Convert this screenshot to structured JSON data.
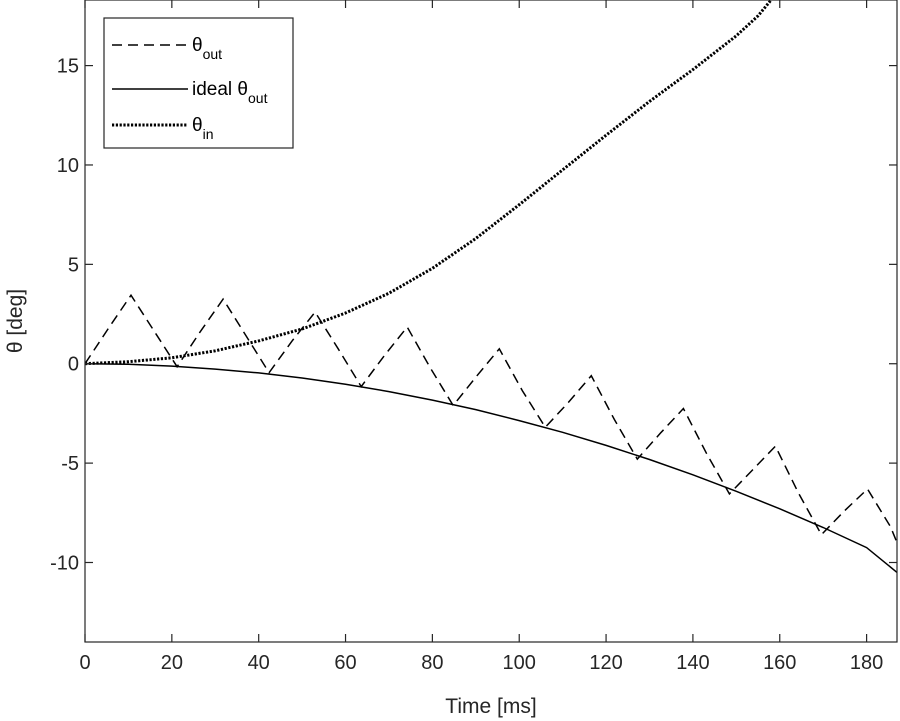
{
  "chart_data": {
    "type": "line",
    "xlabel": "Time [ms]",
    "ylabel": "θ [deg]",
    "xlim": [
      0,
      187
    ],
    "ylim": [
      -14,
      18.3
    ],
    "xticks": [
      0,
      20,
      40,
      60,
      80,
      100,
      120,
      140,
      160,
      180
    ],
    "yticks": [
      -10,
      -5,
      0,
      5,
      10,
      15
    ],
    "grid": false,
    "legend_position": "top-left",
    "series": [
      {
        "name": "θout",
        "name_main": "θ",
        "name_sub": "out",
        "style": "dashed",
        "color": "#000000",
        "x": [
          0,
          5.3,
          10.6,
          15.9,
          21.2,
          26.5,
          31.8,
          37.1,
          42.4,
          47.7,
          53.0,
          58.3,
          63.6,
          68.9,
          74.2,
          79.5,
          84.8,
          90.1,
          95.4,
          100.7,
          106.0,
          111.3,
          116.6,
          121.9,
          127.2,
          132.5,
          137.8,
          143.1,
          148.4,
          153.7,
          159.0,
          164.3,
          169.6,
          174.9,
          180.2,
          185.5,
          187
        ],
        "y": [
          0,
          1.75,
          3.45,
          1.65,
          -0.15,
          1.6,
          3.25,
          1.4,
          -0.45,
          1.15,
          2.6,
          0.75,
          -1.15,
          0.4,
          1.85,
          -0.2,
          -2.1,
          -0.65,
          0.75,
          -1.35,
          -3.2,
          -1.95,
          -0.6,
          -2.8,
          -4.8,
          -3.5,
          -2.25,
          -4.5,
          -6.55,
          -5.35,
          -4.15,
          -6.5,
          -8.6,
          -7.4,
          -6.3,
          -8.2,
          -9.0
        ]
      },
      {
        "name": "ideal θout",
        "name_main": "ideal θ",
        "name_sub": "out",
        "style": "solid",
        "color": "#000000",
        "x": [
          0,
          10,
          20,
          30,
          40,
          50,
          60,
          70,
          80,
          90,
          100,
          110,
          120,
          130,
          140,
          150,
          160,
          170,
          180,
          187
        ],
        "y": [
          0,
          -0.03,
          -0.12,
          -0.27,
          -0.46,
          -0.72,
          -1.03,
          -1.4,
          -1.83,
          -2.31,
          -2.86,
          -3.45,
          -4.11,
          -4.82,
          -5.59,
          -6.42,
          -7.3,
          -8.24,
          -9.25,
          -10.5
        ]
      },
      {
        "name": "θin",
        "name_main": "θ",
        "name_sub": "in",
        "style": "dotted",
        "color": "#000000",
        "x": [
          0,
          10,
          20,
          30,
          40,
          50,
          60,
          70,
          80,
          90,
          100,
          110,
          120,
          130,
          140,
          150,
          155,
          158
        ],
        "y": [
          0,
          0.1,
          0.3,
          0.65,
          1.15,
          1.75,
          2.55,
          3.55,
          4.8,
          6.3,
          8.0,
          9.75,
          11.5,
          13.2,
          14.8,
          16.5,
          17.5,
          18.3
        ]
      }
    ]
  }
}
